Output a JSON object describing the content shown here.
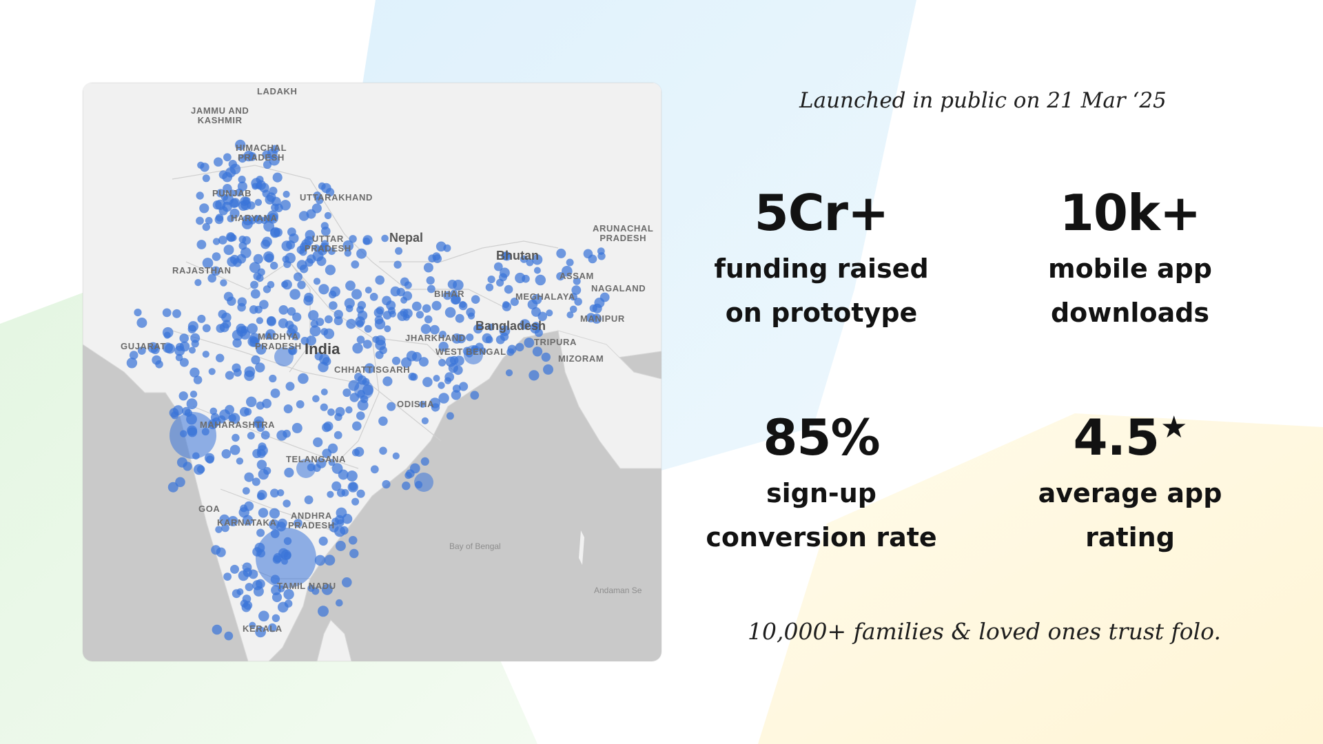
{
  "theme": {
    "accent_blue": "#2f6fd6",
    "dot_blue": "#3a74d8",
    "text_dark": "#121212",
    "bg_blue": "#dff0fb",
    "bg_green": "#e9f7e6",
    "bg_yellow": "#fff9e6"
  },
  "launch_note": "Launched in public on 21 Mar ‘25",
  "stats": [
    {
      "value": "5Cr+",
      "caption": "funding raised\non prototype",
      "has_star": false
    },
    {
      "value": "10k+",
      "caption": "mobile app\ndownloads",
      "has_star": false
    },
    {
      "value": "85%",
      "caption": "sign-up\nconversion rate",
      "has_star": false
    },
    {
      "value": "4.5",
      "caption": "average app\nrating",
      "has_star": true,
      "star_icon": "star-icon"
    }
  ],
  "footer_note": "10,000+ families & loved ones trust folo.",
  "map": {
    "icon": "map-icon",
    "labels": {
      "ladakh": "LADAKH",
      "jk": "JAMMU AND\nKASHMIR",
      "hp": "HIMACHAL\nPRADESH",
      "punjab": "PUNJAB",
      "uttarakhand": "UTTARAKHAND",
      "haryana": "HARYANA",
      "up": "UTTAR\nPRADESH",
      "rajasthan": "RAJASTHAN",
      "nepal": "Nepal",
      "bhutan": "Bhutan",
      "arunachal": "ARUNACHAL\nPRADESH",
      "assam": "ASSAM",
      "nagaland": "NAGALAND",
      "meghalaya": "MEGHALAYA",
      "bihar": "BIHAR",
      "manipur": "MANIPUR",
      "bangladesh": "Bangladesh",
      "gujarat": "GUJARAT",
      "mp": "MADHYA\nPRADESH",
      "india": "India",
      "jharkhand": "JHARKHAND",
      "wb": "WEST BENGAL",
      "tripura": "TRIPURA",
      "mizoram": "MIZORAM",
      "chhattisgarh": "CHHATTISGARH",
      "odisha": "ODISHA",
      "maharashtra": "MAHARASHTRA",
      "telangana": "TELANGANA",
      "goa": "GOA",
      "ap": "ANDHRA\nPRADESH",
      "karnataka": "KARNATAKA",
      "bay": "Bay of Bengal",
      "tn": "TAMIL NADU",
      "andaman": "Andaman Se",
      "kerala": "KERALA"
    }
  }
}
